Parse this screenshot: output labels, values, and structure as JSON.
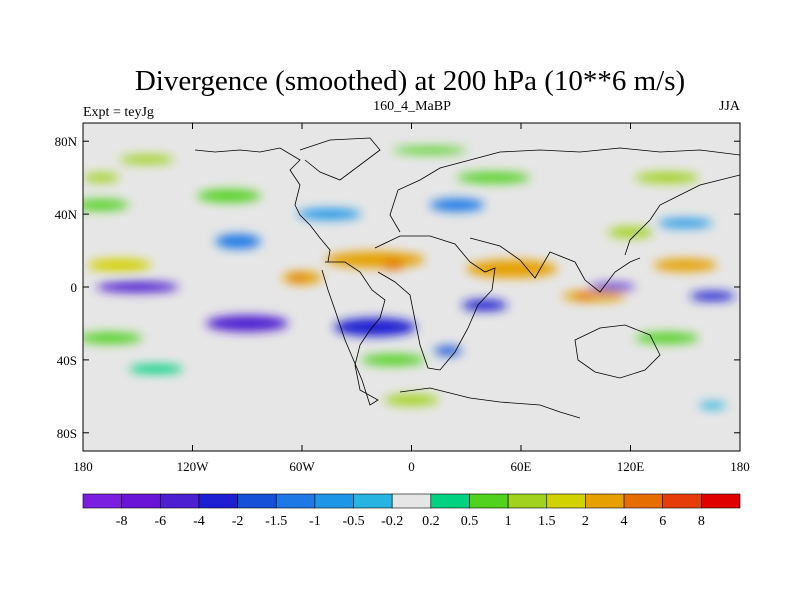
{
  "chart_data": {
    "type": "heatmap",
    "title": "Divergence (smoothed) at 200 hPa (10**6 m/s)",
    "subtitle_left": "Expt = teyJg",
    "subtitle_center": "160_4_MaBP",
    "subtitle_right": "JJA",
    "x_range": [
      -180,
      180
    ],
    "y_range": [
      -90,
      90
    ],
    "x_ticks": [
      {
        "value": -180,
        "label": "180"
      },
      {
        "value": -120,
        "label": "120W"
      },
      {
        "value": -60,
        "label": "60W"
      },
      {
        "value": 0,
        "label": "0"
      },
      {
        "value": 60,
        "label": "60E"
      },
      {
        "value": 120,
        "label": "120E"
      },
      {
        "value": 180,
        "label": "180"
      }
    ],
    "y_ticks": [
      {
        "value": 80,
        "label": "80N"
      },
      {
        "value": 40,
        "label": "40N"
      },
      {
        "value": 0,
        "label": "0"
      },
      {
        "value": -40,
        "label": "40S"
      },
      {
        "value": -80,
        "label": "80S"
      }
    ],
    "colorbar": {
      "colors": [
        "#7a1ee0",
        "#6a14d8",
        "#4c1fd0",
        "#1e1ed2",
        "#1450d8",
        "#1e78e6",
        "#1e96e8",
        "#28b4e0",
        "#e6e6e6",
        "#00d282",
        "#50d21e",
        "#a0d21e",
        "#d2d200",
        "#e6a000",
        "#e66e00",
        "#e63c0a",
        "#e10000"
      ],
      "labels": [
        "-8",
        "-6",
        "-4",
        "-2",
        "-1.5",
        "-1",
        "-0.5",
        "-0.2",
        "0.2",
        "0.5",
        "1",
        "1.5",
        "2",
        "4",
        "6",
        "8"
      ]
    },
    "features": [
      {
        "lon": -20,
        "lat": 15,
        "level": 13,
        "w": 55,
        "h": 9
      },
      {
        "lon": -10,
        "lat": 12,
        "level": 14,
        "w": 12,
        "h": 5
      },
      {
        "lon": 55,
        "lat": 10,
        "level": 13,
        "w": 50,
        "h": 10
      },
      {
        "lon": 100,
        "lat": -5,
        "level": 13,
        "w": 35,
        "h": 6
      },
      {
        "lon": 95,
        "lat": -5,
        "level": 14,
        "w": 10,
        "h": 4
      },
      {
        "lon": 150,
        "lat": 12,
        "level": 13,
        "w": 35,
        "h": 7
      },
      {
        "lon": -160,
        "lat": 12,
        "level": 12,
        "w": 35,
        "h": 7
      },
      {
        "lon": -60,
        "lat": 5,
        "level": 13,
        "w": 22,
        "h": 7
      },
      {
        "lon": -62,
        "lat": 5,
        "level": 14,
        "w": 8,
        "h": 4
      },
      {
        "lon": -150,
        "lat": 0,
        "level": 2,
        "w": 45,
        "h": 6
      },
      {
        "lon": -90,
        "lat": -20,
        "level": 2,
        "w": 45,
        "h": 9
      },
      {
        "lon": -20,
        "lat": -22,
        "level": 3,
        "w": 45,
        "h": 10
      },
      {
        "lon": 40,
        "lat": -10,
        "level": 3,
        "w": 25,
        "h": 6
      },
      {
        "lon": 20,
        "lat": -35,
        "level": 4,
        "w": 15,
        "h": 5
      },
      {
        "lon": 110,
        "lat": 0,
        "level": 2,
        "w": 25,
        "h": 4
      },
      {
        "lon": 165,
        "lat": -5,
        "level": 3,
        "w": 25,
        "h": 5
      },
      {
        "lon": -95,
        "lat": 25,
        "level": 5,
        "w": 25,
        "h": 8
      },
      {
        "lon": -45,
        "lat": 40,
        "level": 6,
        "w": 35,
        "h": 6
      },
      {
        "lon": 25,
        "lat": 45,
        "level": 5,
        "w": 30,
        "h": 7
      },
      {
        "lon": 150,
        "lat": 35,
        "level": 6,
        "w": 30,
        "h": 5
      },
      {
        "lon": -170,
        "lat": 45,
        "level": 10,
        "w": 30,
        "h": 6
      },
      {
        "lon": -100,
        "lat": 50,
        "level": 10,
        "w": 35,
        "h": 7
      },
      {
        "lon": 45,
        "lat": 60,
        "level": 10,
        "w": 40,
        "h": 6
      },
      {
        "lon": 140,
        "lat": 60,
        "level": 11,
        "w": 35,
        "h": 6
      },
      {
        "lon": -145,
        "lat": 70,
        "level": 11,
        "w": 30,
        "h": 5
      },
      {
        "lon": 10,
        "lat": 75,
        "level": 10,
        "w": 40,
        "h": 4
      },
      {
        "lon": 120,
        "lat": 30,
        "level": 11,
        "w": 25,
        "h": 6
      },
      {
        "lon": -165,
        "lat": -28,
        "level": 10,
        "w": 35,
        "h": 6
      },
      {
        "lon": -140,
        "lat": -45,
        "level": 9,
        "w": 30,
        "h": 5
      },
      {
        "lon": -10,
        "lat": -40,
        "level": 10,
        "w": 35,
        "h": 6
      },
      {
        "lon": 0,
        "lat": -62,
        "level": 11,
        "w": 30,
        "h": 6
      },
      {
        "lon": 140,
        "lat": -28,
        "level": 10,
        "w": 35,
        "h": 6
      },
      {
        "lon": 165,
        "lat": -65,
        "level": 7,
        "w": 15,
        "h": 4
      },
      {
        "lon": -170,
        "lat": 60,
        "level": 11,
        "w": 20,
        "h": 5
      }
    ]
  }
}
